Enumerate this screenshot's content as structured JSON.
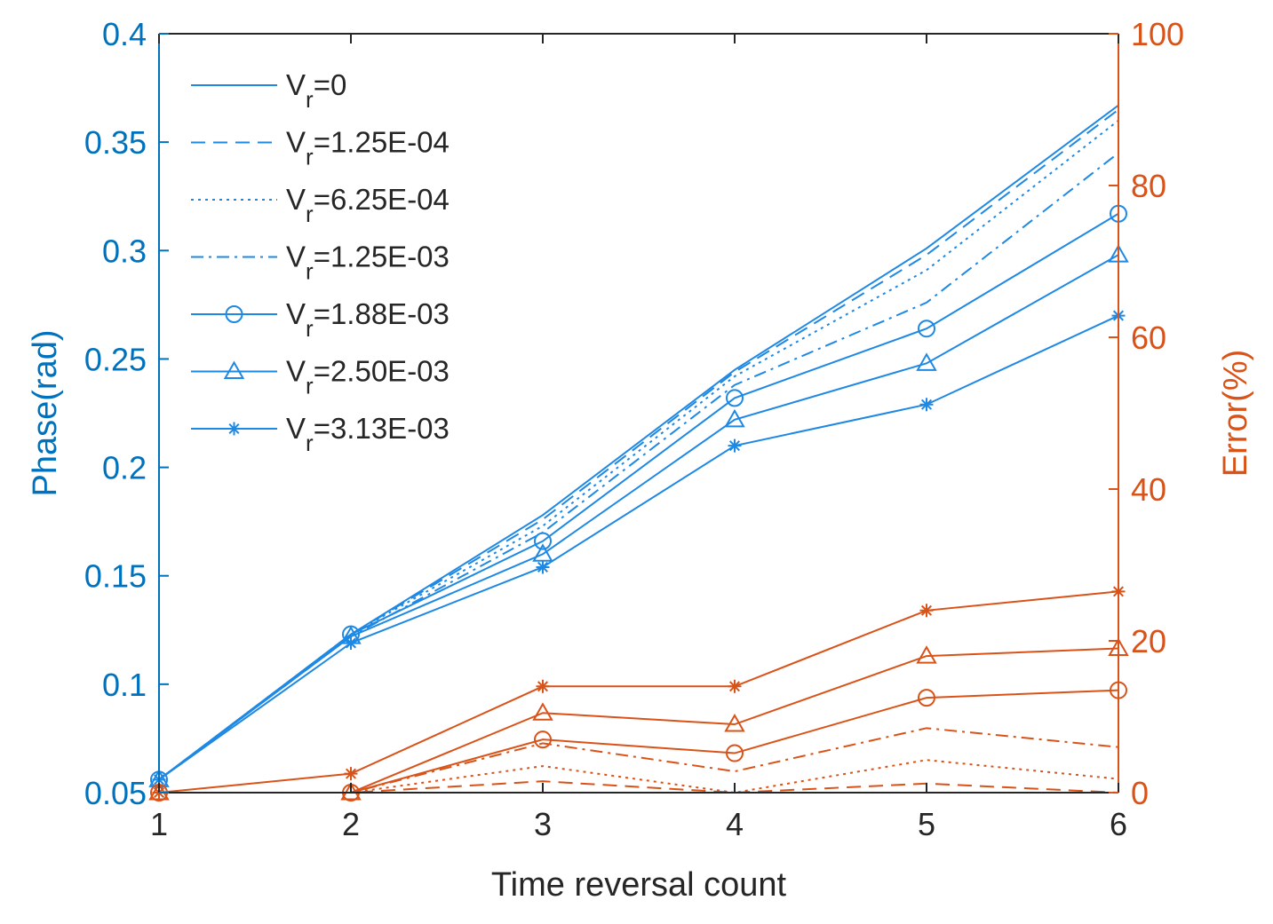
{
  "chart_data": {
    "type": "line",
    "xlabel": "Time reversal count",
    "ylabel_left": "Phase(rad)",
    "ylabel_right": "Error(%)",
    "x": [
      1,
      2,
      3,
      4,
      5,
      6
    ],
    "xlim": [
      1,
      6
    ],
    "ylim_left": [
      0.05,
      0.4
    ],
    "ylim_right": [
      0,
      100
    ],
    "x_ticks": [
      "1",
      "2",
      "3",
      "4",
      "5",
      "6"
    ],
    "y_left_ticks": [
      "0.05",
      "0.1",
      "0.15",
      "0.2",
      "0.25",
      "0.3",
      "0.35",
      "0.4"
    ],
    "y_right_ticks": [
      "0",
      "20",
      "40",
      "60",
      "80",
      "100"
    ],
    "grid": false,
    "legend_position": "top-left",
    "colors": {
      "left_axis": "#0072BD",
      "right_axis": "#D95319",
      "phase_lines": "#1E88E5",
      "error_lines": "#D95319"
    },
    "phase_series": [
      {
        "legend_main": "V",
        "legend_sub": "r",
        "legend_value": "=0",
        "style": "solid",
        "marker": "none",
        "values": [
          0.056,
          0.123,
          0.178,
          0.245,
          0.301,
          0.367
        ]
      },
      {
        "legend_main": "V",
        "legend_sub": "r",
        "legend_value": "=1.25E-04",
        "style": "dashed",
        "marker": "none",
        "values": [
          0.056,
          0.123,
          0.176,
          0.244,
          0.298,
          0.365
        ]
      },
      {
        "legend_main": "V",
        "legend_sub": "r",
        "legend_value": "=6.25E-04",
        "style": "dotted",
        "marker": "none",
        "values": [
          0.056,
          0.123,
          0.173,
          0.242,
          0.291,
          0.36
        ]
      },
      {
        "legend_main": "V",
        "legend_sub": "r",
        "legend_value": "=1.25E-03",
        "style": "dashdot",
        "marker": "none",
        "values": [
          0.056,
          0.122,
          0.17,
          0.238,
          0.276,
          0.345
        ]
      },
      {
        "legend_main": "V",
        "legend_sub": "r",
        "legend_value": "=1.88E-03",
        "style": "solid",
        "marker": "circle",
        "values": [
          0.056,
          0.123,
          0.166,
          0.232,
          0.264,
          0.317
        ]
      },
      {
        "legend_main": "V",
        "legend_sub": "r",
        "legend_value": "=2.50E-03",
        "style": "solid",
        "marker": "triangle",
        "values": [
          0.056,
          0.122,
          0.16,
          0.222,
          0.248,
          0.298
        ]
      },
      {
        "legend_main": "V",
        "legend_sub": "r",
        "legend_value": "=3.13E-03",
        "style": "solid",
        "marker": "star",
        "values": [
          0.056,
          0.119,
          0.154,
          0.21,
          0.229,
          0.27
        ]
      }
    ],
    "error_series": [
      {
        "name": "V_r=0 error",
        "style": "solid",
        "marker": "none",
        "values": [
          0,
          0,
          0,
          0,
          0,
          0
        ]
      },
      {
        "name": "V_r=1.25E-04 error",
        "style": "dashed",
        "marker": "none",
        "values": [
          0,
          0,
          1.5,
          0,
          1.2,
          0
        ]
      },
      {
        "name": "V_r=6.25E-04 error",
        "style": "dotted",
        "marker": "none",
        "values": [
          0,
          0,
          3.5,
          0,
          4.3,
          1.8
        ]
      },
      {
        "name": "V_r=1.25E-03 error",
        "style": "dashdot",
        "marker": "none",
        "values": [
          0,
          0,
          6.5,
          2.8,
          8.5,
          6.0
        ]
      },
      {
        "name": "V_r=1.88E-03 error",
        "style": "solid",
        "marker": "circle",
        "values": [
          0,
          0,
          7.0,
          5.2,
          12.5,
          13.5
        ]
      },
      {
        "name": "V_r=2.50E-03 error",
        "style": "solid",
        "marker": "triangle",
        "values": [
          0,
          0,
          10.5,
          9.0,
          18.0,
          19.0
        ]
      },
      {
        "name": "V_r=3.13E-03 error",
        "style": "solid",
        "marker": "star",
        "values": [
          0,
          2.5,
          14.0,
          14.0,
          24.0,
          26.5
        ]
      }
    ]
  }
}
